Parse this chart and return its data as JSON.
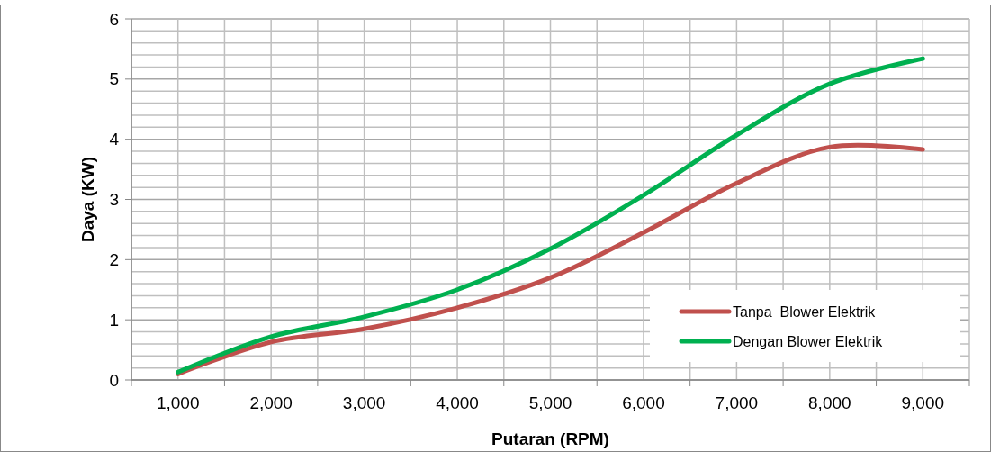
{
  "chart_data": {
    "type": "line",
    "xlabel": "Putaran  (RPM)",
    "ylabel": "Daya (KW)",
    "categories": [
      "1,000",
      "2,000",
      "3,000",
      "4,000",
      "5,000",
      "6,000",
      "7,000",
      "8,000",
      "9,000"
    ],
    "series": [
      {
        "name": "Tanpa  Blower Elektrik",
        "color": "#c0504d",
        "values": [
          0.1,
          0.63,
          0.85,
          1.2,
          1.7,
          2.45,
          3.27,
          3.87,
          3.83
        ]
      },
      {
        "name": "Dengan Blower Elektrik",
        "color": "#00b050",
        "values": [
          0.13,
          0.72,
          1.05,
          1.5,
          2.18,
          3.07,
          4.07,
          4.92,
          5.34
        ]
      }
    ],
    "ylim": [
      0,
      6
    ],
    "yticks": [
      0,
      1,
      2,
      3,
      4,
      5,
      6
    ],
    "grid": true,
    "legend": "bottom right",
    "marker": "none",
    "line_style": "solid"
  }
}
